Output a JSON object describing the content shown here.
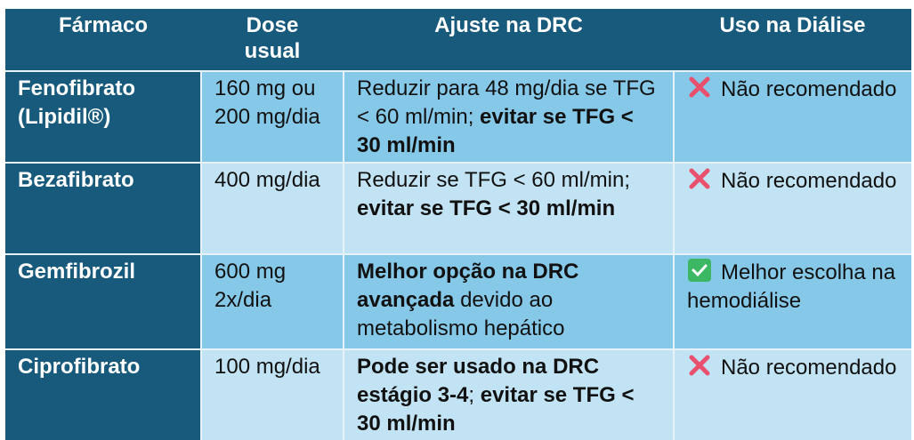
{
  "colors": {
    "header": "#175a7c",
    "row_odd": "#86c8e8",
    "row_even": "#c2e3f3",
    "cross": "#e8506e",
    "check": "#3cb763"
  },
  "table": {
    "headers": [
      "Fármaco",
      "Dose usual",
      "Ajuste na DRC",
      "Uso na Diálise"
    ],
    "rows": [
      {
        "drug": "Fenofibrato (Lipidil®)",
        "dose": "160 mg ou 200 mg/dia",
        "adjust": [
          {
            "text": "Reduzir para 48 mg/dia se TFG < 60 ml/min; ",
            "bold": false
          },
          {
            "text": "evitar se TFG < 30 ml/min",
            "bold": true
          }
        ],
        "dialysis": {
          "icon": "cross-mark-icon",
          "text": "Não recomendado"
        }
      },
      {
        "drug": "Bezafibrato",
        "dose": "400 mg/dia",
        "adjust": [
          {
            "text": "Reduzir se TFG < 60 ml/min; ",
            "bold": false
          },
          {
            "text": "evitar se TFG < 30 ml/min",
            "bold": true
          }
        ],
        "dialysis": {
          "icon": "cross-mark-icon",
          "text": "Não recomendado"
        }
      },
      {
        "drug": "Gemfibrozil",
        "dose": "600 mg 2x/dia",
        "adjust": [
          {
            "text": "Melhor opção na DRC avançada",
            "bold": true
          },
          {
            "text": " devido ao metabolismo hepático",
            "bold": false
          }
        ],
        "dialysis": {
          "icon": "check-mark-icon",
          "text": "Melhor escolha na hemodiálise"
        }
      },
      {
        "drug": "Ciprofibrato",
        "dose": "100 mg/dia",
        "adjust": [
          {
            "text": "Pode ser usado na DRC estágio 3-4",
            "bold": true
          },
          {
            "text": "; ",
            "bold": false
          },
          {
            "text": "evitar se TFG < 30 ml/min",
            "bold": true
          }
        ],
        "dialysis": {
          "icon": "cross-mark-icon",
          "text": "Não recomendado"
        }
      }
    ]
  }
}
